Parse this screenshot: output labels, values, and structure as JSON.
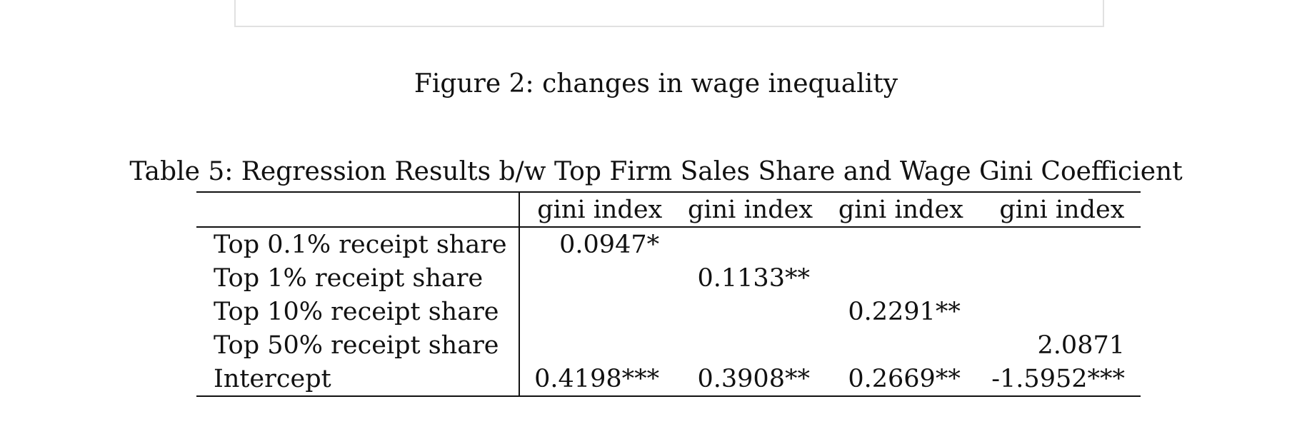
{
  "figure_caption": "Figure 2: changes in wage inequality",
  "table": {
    "caption": "Table 5: Regression Results b/w Top Firm Sales Share and Wage Gini Coefficient",
    "header": [
      "",
      "gini index",
      "gini index",
      "gini index",
      "gini index"
    ],
    "rows": [
      {
        "label": "Top 0.1% receipt share",
        "cells": [
          "0.0947*",
          "",
          "",
          ""
        ]
      },
      {
        "label": "Top 1% receipt share",
        "cells": [
          "",
          "0.1133**",
          "",
          ""
        ]
      },
      {
        "label": "Top 10% receipt share",
        "cells": [
          "",
          "",
          "0.2291**",
          ""
        ]
      },
      {
        "label": "Top 50% receipt share",
        "cells": [
          "",
          "",
          "",
          "2.0871"
        ]
      },
      {
        "label": "Intercept",
        "cells": [
          "0.4198***",
          "0.3908**",
          "0.2669**",
          "-1.5952***"
        ]
      }
    ]
  }
}
